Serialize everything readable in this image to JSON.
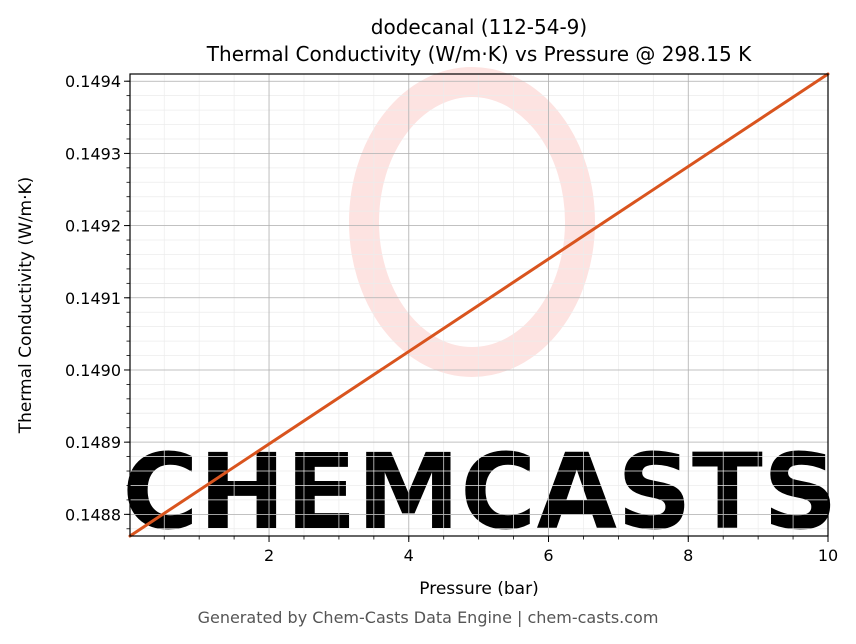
{
  "chart_data": {
    "type": "line",
    "title_line1": "dodecanal (112-54-9)",
    "title_line2": "Thermal Conductivity (W/m·K) vs Pressure @ 298.15 K",
    "xlabel": "Pressure (bar)",
    "ylabel": "Thermal Conductivity (W/m·K)",
    "xlim": [
      0.01,
      10
    ],
    "ylim": [
      0.14877,
      0.14941
    ],
    "x_ticks": [
      2,
      4,
      6,
      8,
      10
    ],
    "x_tick_labels": [
      "2",
      "4",
      "6",
      "8",
      "10"
    ],
    "y_ticks": [
      0.1488,
      0.1489,
      0.149,
      0.1491,
      0.1492,
      0.1493,
      0.1494
    ],
    "y_tick_labels": [
      "0.1488",
      "0.1489",
      "0.1490",
      "0.1491",
      "0.1492",
      "0.1493",
      "0.1494"
    ],
    "grid": true,
    "series": [
      {
        "x": [
          0.01,
          10
        ],
        "y": [
          0.14877,
          0.14941
        ],
        "color": "#d9541e"
      }
    ]
  },
  "watermark": {
    "text": "CHEMCASTS",
    "color": "#fde3e1"
  },
  "footer": "Generated by Chem-Casts Data Engine | chem-casts.com"
}
